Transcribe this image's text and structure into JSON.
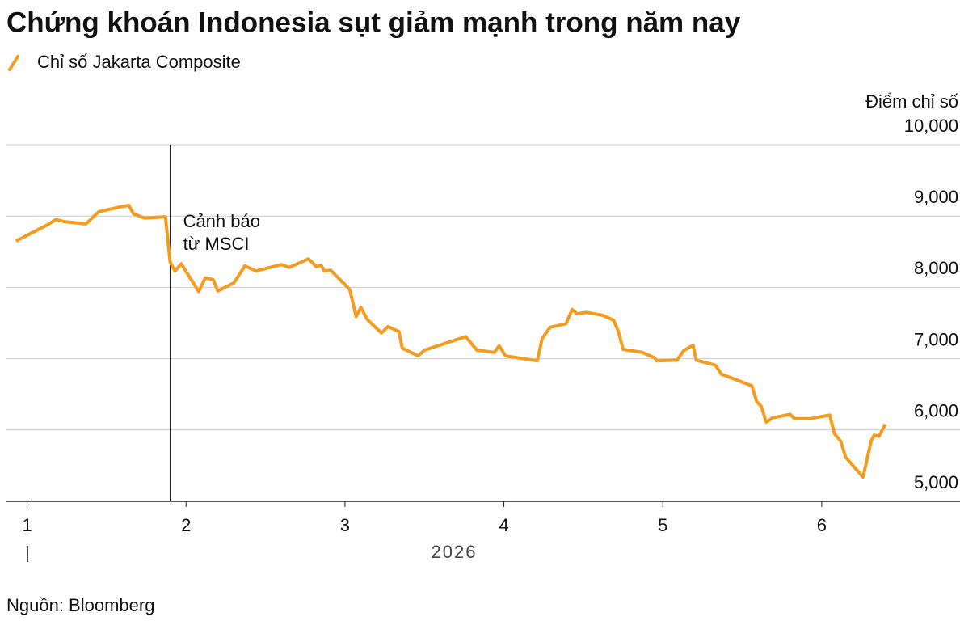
{
  "chart_data": {
    "type": "line",
    "title": "Chứng khoán Indonesia sụt giảm mạnh trong năm nay",
    "y_axis_label": "Điểm chỉ số",
    "xlabel": "2026",
    "source": "Nguồn: Bloomberg",
    "x": [
      0.93,
      1.13,
      1.18,
      1.24,
      1.37,
      1.45,
      1.59,
      1.64,
      1.67,
      1.74,
      1.87,
      1.9,
      1.93,
      1.97,
      2.08,
      2.12,
      2.17,
      2.2,
      2.3,
      2.37,
      2.44,
      2.6,
      2.65,
      2.77,
      2.82,
      2.85,
      2.87,
      2.91,
      3.03,
      3.07,
      3.1,
      3.14,
      3.23,
      3.27,
      3.34,
      3.36,
      3.46,
      3.5,
      3.76,
      3.83,
      3.94,
      3.97,
      4.01,
      4.21,
      4.24,
      4.29,
      4.39,
      4.43,
      4.46,
      4.52,
      4.62,
      4.69,
      4.72,
      4.75,
      4.87,
      4.95,
      4.96,
      5.09,
      5.13,
      5.19,
      5.21,
      5.33,
      5.37,
      5.42,
      5.56,
      5.59,
      5.62,
      5.65,
      5.69,
      5.8,
      5.83,
      5.93,
      6.05,
      6.08,
      6.12,
      6.15,
      6.26,
      6.31,
      6.33,
      6.36,
      6.4
    ],
    "series": [
      {
        "name": "Chỉ số Jakarta Composite",
        "color": "#f39c1f",
        "values": [
          8650,
          8880,
          8950,
          8920,
          8890,
          9060,
          9130,
          9150,
          9030,
          8970,
          8990,
          8350,
          8230,
          8330,
          7940,
          8130,
          8110,
          7950,
          8060,
          8300,
          8230,
          8320,
          8280,
          8400,
          8290,
          8310,
          8230,
          8240,
          7970,
          7590,
          7720,
          7550,
          7360,
          7450,
          7380,
          7150,
          7040,
          7120,
          7310,
          7120,
          7090,
          7180,
          7040,
          6970,
          7280,
          7440,
          7490,
          7690,
          7630,
          7650,
          7610,
          7540,
          7380,
          7130,
          7090,
          7010,
          6970,
          6980,
          7110,
          7190,
          6980,
          6910,
          6780,
          6740,
          6620,
          6400,
          6330,
          6110,
          6170,
          6220,
          6160,
          6160,
          6210,
          5950,
          5840,
          5620,
          5340,
          5840,
          5930,
          5910,
          6080
        ]
      }
    ],
    "xlim": [
      0.87,
      6.87
    ],
    "xticks": [
      1,
      2,
      3,
      4,
      5,
      6
    ],
    "ylim": [
      5000,
      10000
    ],
    "yticks": [
      {
        "value": 5000,
        "label": "5,000"
      },
      {
        "value": 6000,
        "label": "6,000"
      },
      {
        "value": 7000,
        "label": "7,000"
      },
      {
        "value": 8000,
        "label": "8,000"
      },
      {
        "value": 9000,
        "label": "9,000"
      },
      {
        "value": 10000,
        "label": "10,000"
      }
    ],
    "grid": true,
    "annotation": {
      "x": 1.9,
      "text": [
        "Cảnh báo",
        "từ MSCI"
      ]
    }
  }
}
